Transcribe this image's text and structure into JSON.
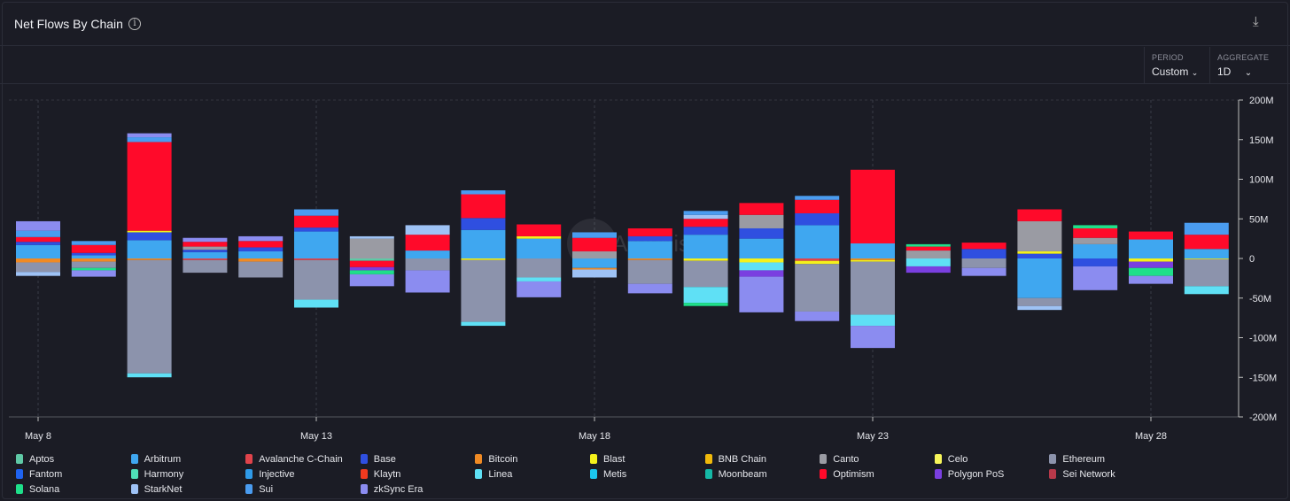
{
  "header": {
    "title": "Net Flows By Chain",
    "download_icon": "download-icon",
    "info_icon": "info-icon"
  },
  "controls": {
    "period_label": "PERIOD",
    "period_value": "Custom",
    "aggregate_label": "AGGREGATE",
    "aggregate_value": "1D"
  },
  "watermark": "Artemis",
  "chart_data": {
    "type": "bar",
    "stacked": true,
    "title": "Net Flows By Chain",
    "x": [
      "May 8",
      "May 9",
      "May 10",
      "May 11",
      "May 12",
      "May 13",
      "May 14",
      "May 15",
      "May 16",
      "May 17",
      "May 18",
      "May 19",
      "May 20",
      "May 21",
      "May 22",
      "May 23",
      "May 24",
      "May 25",
      "May 26",
      "May 27",
      "May 28",
      "May 29"
    ],
    "x_ticks": [
      "May 8",
      "May 13",
      "May 18",
      "May 23",
      "May 28"
    ],
    "y_ticks": [
      "200M",
      "150M",
      "100M",
      "50M",
      "0",
      "-50M",
      "-100M",
      "-150M",
      "-200M"
    ],
    "ylim": [
      -200,
      200
    ],
    "yunit": "M USD",
    "legend_position": "bottom",
    "series": [
      {
        "name": "Aptos",
        "color": "#5fc9a6",
        "values": [
          0,
          0,
          0,
          0,
          0,
          0,
          -3,
          0,
          0,
          0,
          0,
          0,
          0,
          0,
          0,
          0,
          0,
          0,
          0,
          0,
          0,
          0
        ]
      },
      {
        "name": "Arbitrum",
        "color": "#3fa7f0",
        "values": [
          17,
          4,
          23,
          8,
          9,
          34,
          0,
          10,
          36,
          25,
          -12,
          22,
          30,
          25,
          42,
          19,
          0,
          0,
          -50,
          18,
          24,
          12
        ]
      },
      {
        "name": "Avalanche C-Chain",
        "color": "#e0434b",
        "values": [
          0,
          0,
          0,
          -2,
          0,
          -2,
          0,
          0,
          0,
          0,
          0,
          0,
          0,
          0,
          -3,
          0,
          0,
          0,
          0,
          0,
          0,
          0
        ]
      },
      {
        "name": "Base",
        "color": "#2f4fe0",
        "values": [
          4,
          3,
          10,
          3,
          5,
          5,
          0,
          0,
          15,
          0,
          0,
          6,
          10,
          13,
          15,
          0,
          0,
          12,
          6,
          -10,
          0,
          0
        ]
      },
      {
        "name": "Bitcoin",
        "color": "#f08a24",
        "values": [
          -5,
          -4,
          -2,
          0,
          -4,
          0,
          0,
          0,
          0,
          0,
          -2,
          -2,
          0,
          0,
          0,
          -2,
          0,
          0,
          0,
          0,
          0,
          0
        ]
      },
      {
        "name": "Blast",
        "color": "#f5f11a",
        "values": [
          0,
          0,
          2,
          0,
          0,
          0,
          0,
          0,
          -2,
          3,
          0,
          0,
          -3,
          -5,
          -4,
          -2,
          0,
          0,
          3,
          0,
          -4,
          -1
        ]
      },
      {
        "name": "BNB Chain",
        "color": "#f0b90b",
        "values": [
          0,
          0,
          0,
          0,
          0,
          0,
          0,
          0,
          0,
          0,
          0,
          0,
          0,
          0,
          0,
          0,
          0,
          0,
          0,
          0,
          0,
          0
        ]
      },
      {
        "name": "Canto",
        "color": "#9a9ba3",
        "values": [
          0,
          0,
          0,
          4,
          0,
          0,
          25,
          0,
          0,
          0,
          9,
          0,
          0,
          17,
          0,
          0,
          10,
          0,
          38,
          8,
          0,
          0
        ]
      },
      {
        "name": "Celo",
        "color": "#f8f65a",
        "values": [
          0,
          0,
          0,
          0,
          0,
          0,
          0,
          0,
          0,
          0,
          0,
          0,
          0,
          0,
          0,
          0,
          0,
          0,
          0,
          0,
          0,
          0
        ]
      },
      {
        "name": "Ethereum",
        "color": "#8c93ac",
        "values": [
          -12,
          -8,
          -143,
          -16,
          -20,
          -50,
          0,
          -15,
          -78,
          -24,
          0,
          -30,
          -33,
          0,
          -60,
          -67,
          0,
          -12,
          -10,
          0,
          0,
          -34
        ]
      },
      {
        "name": "Fantom",
        "color": "#1f63f0",
        "values": [
          0,
          0,
          0,
          0,
          0,
          0,
          0,
          0,
          0,
          0,
          0,
          0,
          0,
          0,
          0,
          0,
          0,
          0,
          0,
          0,
          0,
          0
        ]
      },
      {
        "name": "Harmony",
        "color": "#4fe0b8",
        "values": [
          0,
          0,
          0,
          0,
          0,
          0,
          0,
          0,
          0,
          0,
          0,
          0,
          0,
          0,
          0,
          0,
          0,
          0,
          0,
          0,
          0,
          0
        ]
      },
      {
        "name": "Injective",
        "color": "#2f9ae8",
        "values": [
          0,
          0,
          0,
          0,
          0,
          0,
          0,
          0,
          0,
          0,
          0,
          0,
          0,
          0,
          0,
          0,
          0,
          0,
          0,
          0,
          0,
          0
        ]
      },
      {
        "name": "Klaytn",
        "color": "#f03a1f",
        "values": [
          0,
          0,
          0,
          0,
          0,
          0,
          0,
          0,
          0,
          0,
          0,
          0,
          0,
          0,
          0,
          0,
          0,
          0,
          0,
          0,
          0,
          0
        ]
      },
      {
        "name": "Linea",
        "color": "#5fe0f5",
        "values": [
          0,
          0,
          -5,
          0,
          0,
          -10,
          0,
          0,
          -5,
          -5,
          0,
          0,
          -20,
          -10,
          0,
          -14,
          -10,
          0,
          0,
          0,
          0,
          -10
        ]
      },
      {
        "name": "Metis",
        "color": "#1cc8ef",
        "values": [
          0,
          0,
          0,
          0,
          0,
          0,
          0,
          0,
          0,
          0,
          0,
          0,
          0,
          0,
          0,
          0,
          0,
          0,
          0,
          0,
          0,
          0
        ]
      },
      {
        "name": "Moonbeam",
        "color": "#15b8a6",
        "values": [
          0,
          0,
          0,
          0,
          0,
          0,
          0,
          0,
          0,
          0,
          0,
          0,
          0,
          0,
          0,
          0,
          0,
          0,
          0,
          0,
          0,
          0
        ]
      },
      {
        "name": "Optimism",
        "color": "#ff0a2a",
        "values": [
          6,
          10,
          112,
          6,
          8,
          15,
          -8,
          20,
          30,
          15,
          17,
          10,
          10,
          15,
          17,
          93,
          5,
          8,
          15,
          12,
          10,
          18
        ]
      },
      {
        "name": "Polygon PoS",
        "color": "#7a3fe0",
        "values": [
          0,
          0,
          0,
          0,
          0,
          0,
          -4,
          0,
          0,
          0,
          0,
          0,
          0,
          -8,
          0,
          0,
          -8,
          0,
          0,
          0,
          -8,
          0
        ]
      },
      {
        "name": "Sei Network",
        "color": "#b8394a",
        "values": [
          0,
          0,
          0,
          0,
          0,
          0,
          0,
          0,
          0,
          0,
          0,
          0,
          0,
          0,
          0,
          0,
          0,
          0,
          0,
          0,
          0,
          0
        ]
      },
      {
        "name": "Solana",
        "color": "#1ee08a",
        "values": [
          0,
          -3,
          0,
          0,
          0,
          0,
          -5,
          0,
          0,
          0,
          0,
          0,
          -4,
          0,
          0,
          0,
          3,
          0,
          0,
          4,
          -10,
          0
        ]
      },
      {
        "name": "StarkNet",
        "color": "#9ec2f5",
        "values": [
          -5,
          0,
          0,
          0,
          0,
          0,
          3,
          12,
          0,
          0,
          -10,
          0,
          5,
          0,
          0,
          0,
          0,
          0,
          -5,
          0,
          0,
          0
        ]
      },
      {
        "name": "Sui",
        "color": "#4a9cf0",
        "values": [
          8,
          5,
          6,
          0,
          0,
          8,
          0,
          0,
          5,
          0,
          7,
          0,
          5,
          0,
          5,
          0,
          0,
          0,
          0,
          0,
          0,
          15
        ]
      },
      {
        "name": "zkSync Era",
        "color": "#8b8cf0",
        "values": [
          12,
          -8,
          5,
          5,
          6,
          0,
          -15,
          -28,
          0,
          -20,
          0,
          -12,
          0,
          -45,
          -12,
          -28,
          0,
          -10,
          0,
          -30,
          -10,
          0
        ]
      }
    ]
  }
}
